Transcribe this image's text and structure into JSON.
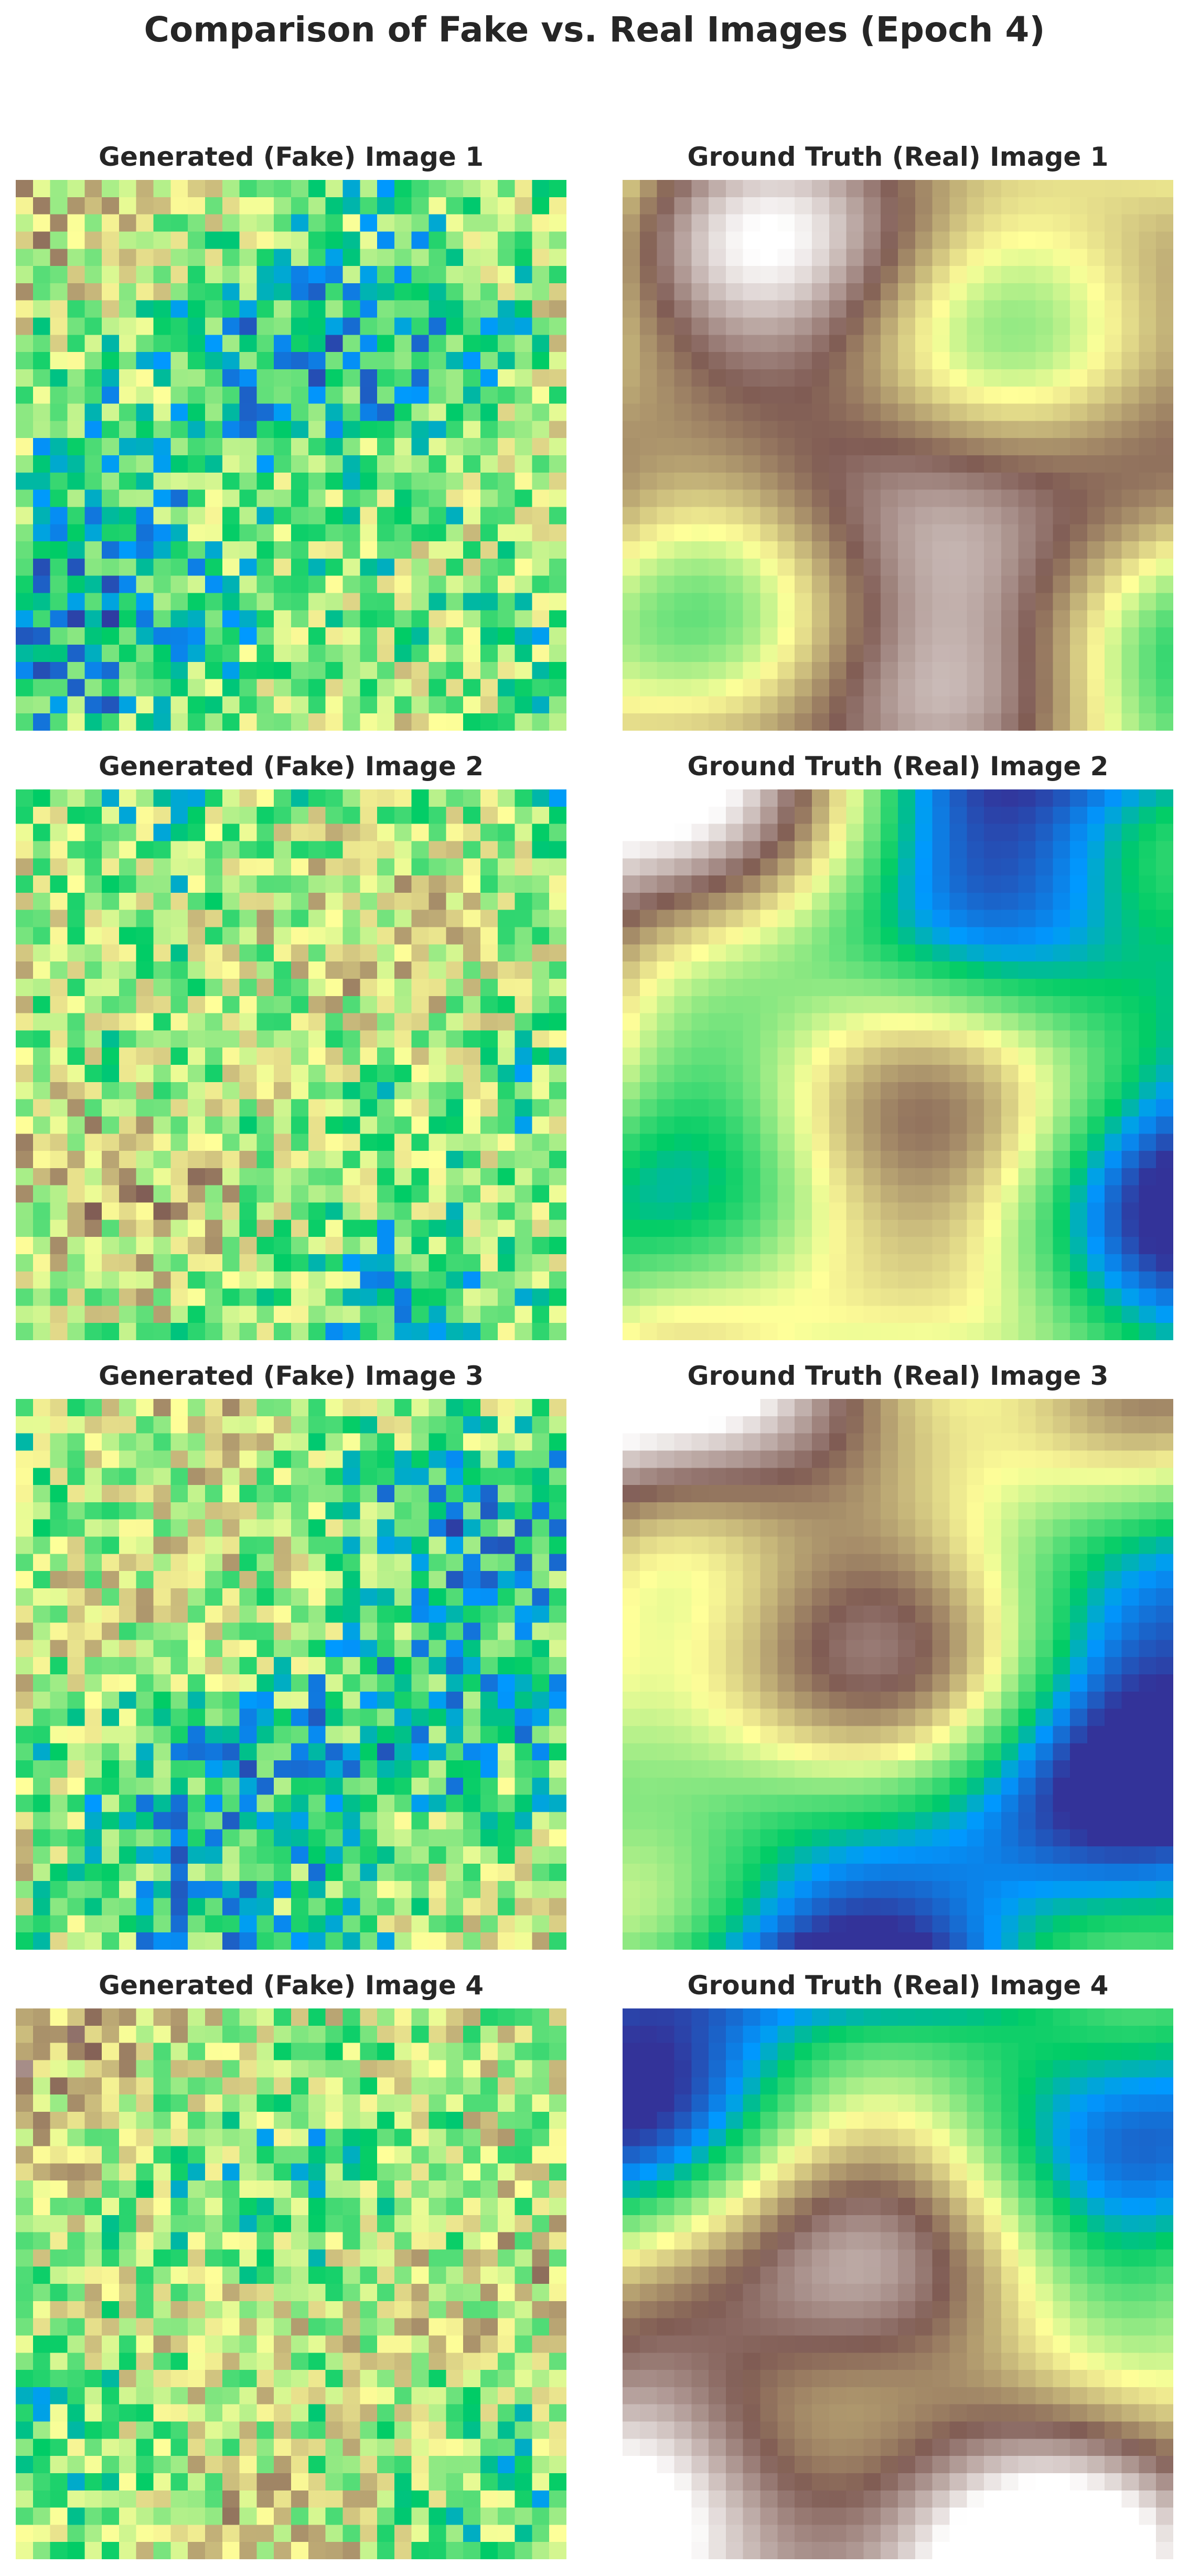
{
  "chart_data": {
    "type": "heatmap",
    "title": "Comparison of Fake vs. Real Images (Epoch 4)",
    "colormap": "terrain",
    "grid": false,
    "axes_visible": false,
    "pixel_grid": [
      32,
      32
    ],
    "panels": [
      {
        "row": 1,
        "column": "left",
        "title": "Generated (Fake) Image 1",
        "kind": "fake",
        "seed": 11
      },
      {
        "row": 1,
        "column": "right",
        "title": "Ground Truth (Real) Image 1",
        "kind": "real",
        "seed": 1
      },
      {
        "row": 2,
        "column": "left",
        "title": "Generated (Fake) Image 2",
        "kind": "fake",
        "seed": 22
      },
      {
        "row": 2,
        "column": "right",
        "title": "Ground Truth (Real) Image 2",
        "kind": "real",
        "seed": 2
      },
      {
        "row": 3,
        "column": "left",
        "title": "Generated (Fake) Image 3",
        "kind": "fake",
        "seed": 33
      },
      {
        "row": 3,
        "column": "right",
        "title": "Ground Truth (Real) Image 3",
        "kind": "real",
        "seed": 3
      },
      {
        "row": 4,
        "column": "left",
        "title": "Generated (Fake) Image 4",
        "kind": "fake",
        "seed": 44
      },
      {
        "row": 4,
        "column": "right",
        "title": "Ground Truth (Real) Image 4",
        "kind": "real",
        "seed": 4
      }
    ]
  }
}
